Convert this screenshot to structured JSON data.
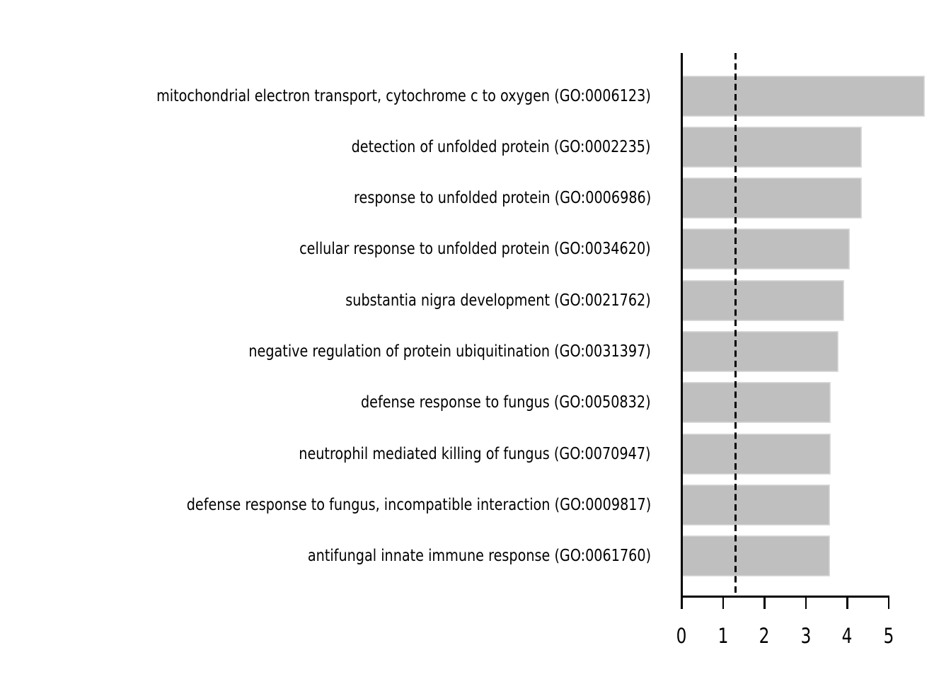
{
  "figure": {
    "background_color": "#ffffff",
    "title": ""
  },
  "chart_data": {
    "type": "bar",
    "orientation": "horizontal",
    "title": "",
    "xlabel": "",
    "ylabel": "",
    "categories": [
      "mitochondrial electron transport, cytochrome c to oxygen (GO:0006123)",
      "detection of unfolded protein (GO:0002235)",
      "response to unfolded protein (GO:0006986)",
      "cellular response to unfolded protein (GO:0034620)",
      "substantia nigra development (GO:0021762)",
      "negative regulation of protein ubiquitination (GO:0031397)",
      "defense response to fungus (GO:0050832)",
      "neutrophil mediated killing of fungus (GO:0070947)",
      "defense response to fungus, incompatible interaction (GO:0009817)",
      "antifungal innate immune response (GO:0061760)"
    ],
    "values": [
      5.87,
      4.35,
      4.35,
      4.06,
      3.92,
      3.79,
      3.6,
      3.6,
      3.59,
      3.59
    ],
    "x_ticks": [
      "0",
      "1",
      "2",
      "3",
      "4",
      "5"
    ],
    "xlim": [
      0,
      5.9
    ],
    "threshold_line": {
      "value": 1.3,
      "style": "dashed",
      "color": "#000000"
    },
    "bar_color": "#bfbfbf",
    "bar_edge_color": "#dcdcdc",
    "axis_color": "#000000",
    "text_color": "#000000",
    "grid": false,
    "legend": null
  }
}
